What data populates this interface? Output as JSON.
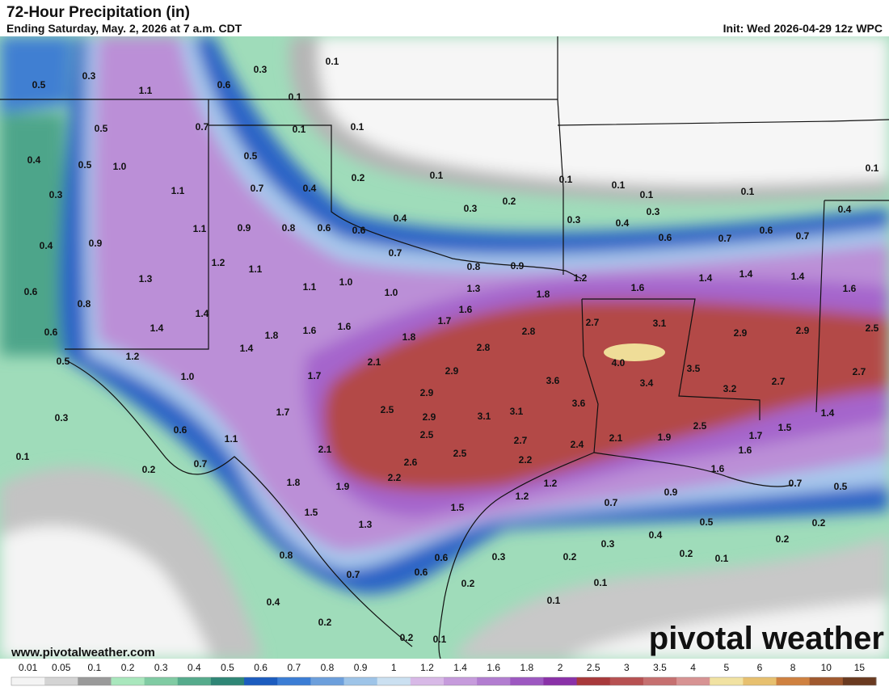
{
  "header": {
    "title": "72-Hour Precipitation (in)",
    "subtitle": "Ending Saturday, May. 2, 2026 at 7 a.m. CDT",
    "init": "Init: Wed 2026-04-29 12z WPC"
  },
  "footer": {
    "url": "www.pivotalweather.com",
    "logo": "pivotal weather"
  },
  "map": {
    "labels": [
      "0.3",
      "0.5",
      "1.1",
      "0.6",
      "0.3",
      "0.1",
      "0.1",
      "0.5",
      "0.7",
      "0.1",
      "0.1",
      "0.4",
      "0.5",
      "1.0",
      "0.5",
      "0.2",
      "0.1",
      "0.3",
      "1.1",
      "0.7",
      "0.4",
      "0.1",
      "0.1",
      "0.1",
      "0.1",
      "0.1",
      "0.2",
      "0.3",
      "0.4",
      "0.3",
      "0.4",
      "0.3",
      "0.4",
      "0.4",
      "0.9",
      "1.1",
      "0.9",
      "0.8",
      "0.6",
      "0.6",
      "0.6",
      "0.7",
      "0.6",
      "0.7",
      "0.7",
      "0.8",
      "0.9",
      "1.2",
      "1.1",
      "1.3",
      "1.2",
      "1.4",
      "1.4",
      "1.4",
      "1.6",
      "0.6",
      "0.8",
      "1.1",
      "1.0",
      "1.0",
      "1.3",
      "1.8",
      "1.6",
      "1.4",
      "1.6",
      "0.6",
      "1.4",
      "1.8",
      "1.6",
      "1.6",
      "1.8",
      "1.7",
      "2.8",
      "2.7",
      "3.1",
      "2.9",
      "2.9",
      "2.5",
      "1.2",
      "1.4",
      "2.8",
      "0.5",
      "2.1",
      "4.0",
      "3.5",
      "1.0",
      "1.7",
      "2.9",
      "3.6",
      "3.4",
      "2.7",
      "2.7",
      "2.9",
      "3.2",
      "3.6",
      "0.3",
      "1.7",
      "2.5",
      "2.9",
      "3.1",
      "3.1",
      "1.4",
      "2.5",
      "1.5",
      "0.6",
      "2.5",
      "1.1",
      "2.7",
      "2.4",
      "2.1",
      "1.9",
      "1.7",
      "2.1",
      "2.5",
      "0.1",
      "0.7",
      "2.6",
      "2.2",
      "1.6",
      "0.2",
      "2.2",
      "1.6",
      "1.8",
      "1.9",
      "1.2",
      "0.7",
      "0.5",
      "1.2",
      "0.9",
      "1.5",
      "1.5",
      "0.7",
      "0.5",
      "1.3",
      "0.4",
      "0.2",
      "0.2",
      "0.3",
      "0.8",
      "0.6",
      "0.3",
      "0.2",
      "0.2",
      "0.1",
      "0.7",
      "0.6",
      "0.2",
      "0.1",
      "0.4",
      "0.1",
      "0.2",
      "0.2",
      "0.1"
    ]
  },
  "legend": {
    "labels": [
      "0.01",
      "0.05",
      "0.1",
      "0.2",
      "0.3",
      "0.4",
      "0.5",
      "0.6",
      "0.7",
      "0.8",
      "0.9",
      "1",
      "1.2",
      "1.4",
      "1.6",
      "1.8",
      "2",
      "2.5",
      "3",
      "3.5",
      "4",
      "5",
      "6",
      "8",
      "10",
      "15"
    ],
    "colors": [
      "#f4f4f4",
      "#d4d4d4",
      "#9a9a9a",
      "#a9e7bd",
      "#80cba3",
      "#56ab8c",
      "#2f8676",
      "#1c5cbf",
      "#3b7dd5",
      "#6c9fdc",
      "#9ec4e8",
      "#cbe0f1",
      "#d8b9e7",
      "#c69bdc",
      "#b27dd0",
      "#9d58c1",
      "#8a31a8",
      "#a8393b",
      "#b75152",
      "#c67070",
      "#d79393",
      "#f1e2a2",
      "#e7c06f",
      "#cf8140",
      "#a0592f",
      "#6a3a20"
    ]
  }
}
